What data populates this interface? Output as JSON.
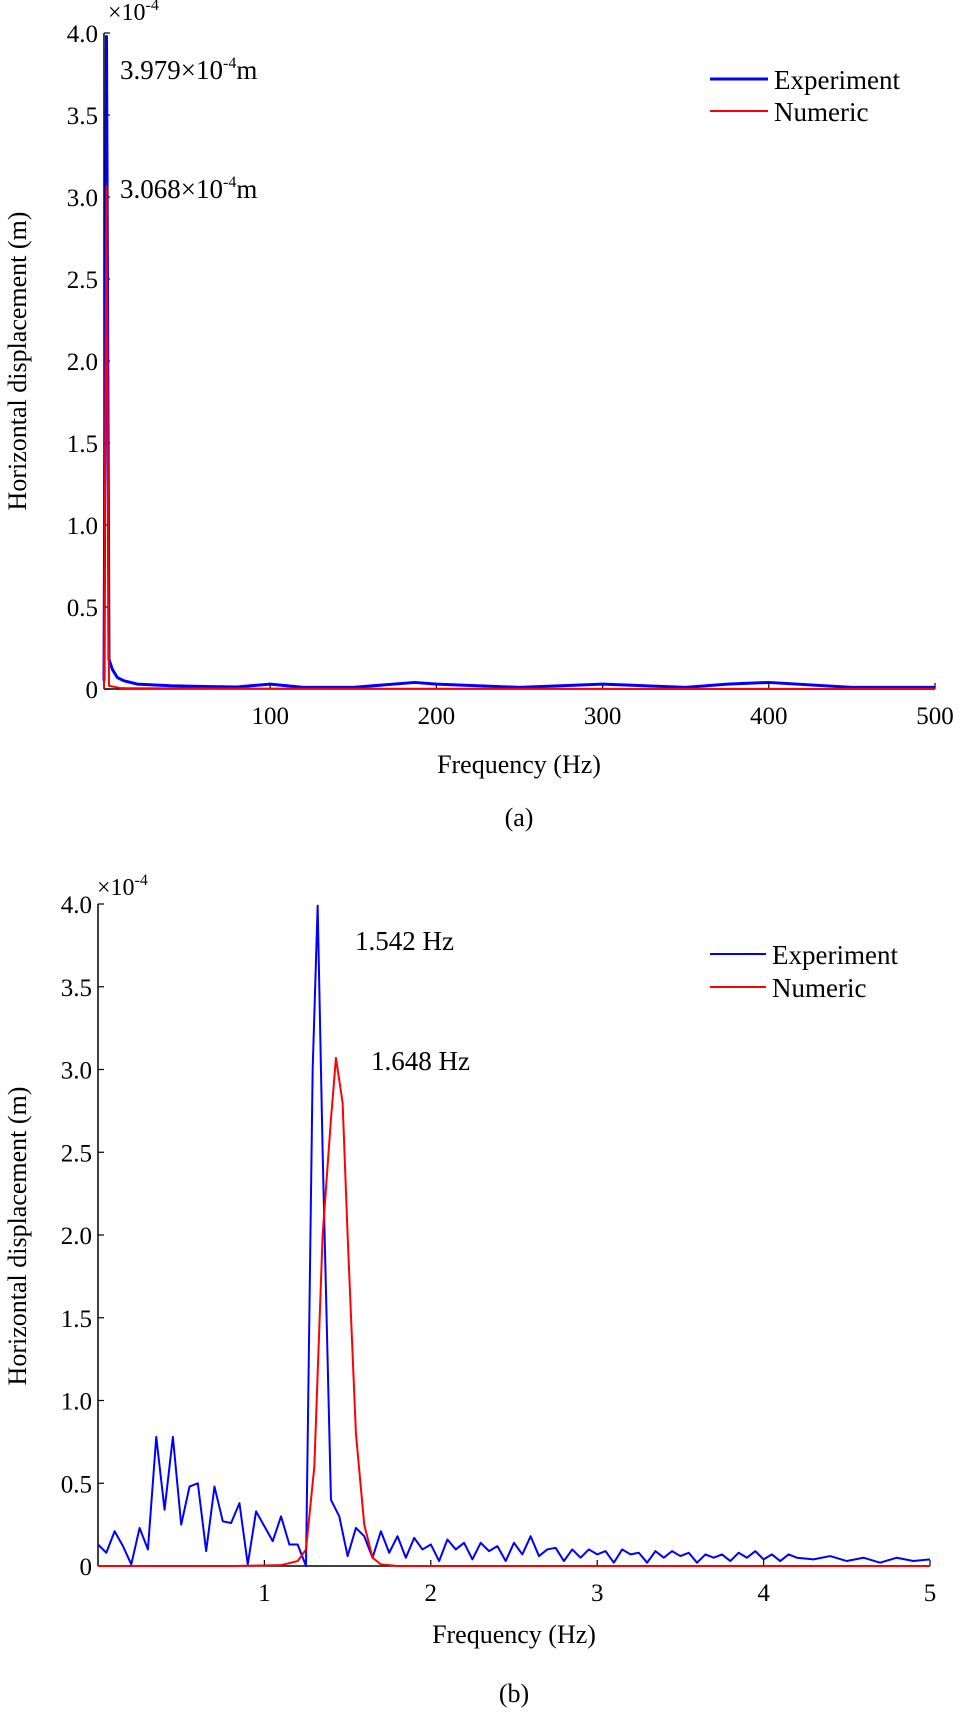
{
  "chart_data": [
    {
      "type": "line",
      "panel_label": "(a)",
      "xlabel": "Frequency (Hz)",
      "ylabel": "Horizontal displacement (m)",
      "y_multiplier": "×10",
      "y_multiplier_exp": "-4",
      "xlim": [
        0,
        500
      ],
      "ylim": [
        0,
        4.0
      ],
      "xticks": [
        100,
        200,
        300,
        400,
        500
      ],
      "xtick_labels": [
        "100",
        "200",
        "300",
        "400",
        "500"
      ],
      "yticks": [
        0,
        0.5,
        1.0,
        1.5,
        2.0,
        2.5,
        3.0,
        3.5,
        4.0
      ],
      "ytick_labels": [
        "0",
        "0.5",
        "1.0",
        "1.5",
        "2.0",
        "2.5",
        "3.0",
        "3.5",
        "4.0"
      ],
      "legend_position": "top-right",
      "series": [
        {
          "name": "Experiment",
          "color": "#0000ff",
          "points": [
            [
              0,
              0.05
            ],
            [
              1.5,
              3.979
            ],
            [
              3,
              0.18
            ],
            [
              5,
              0.12
            ],
            [
              8,
              0.07
            ],
            [
              12,
              0.05
            ],
            [
              20,
              0.03
            ],
            [
              40,
              0.02
            ],
            [
              60,
              0.015
            ],
            [
              80,
              0.012
            ],
            [
              100,
              0.03
            ],
            [
              120,
              0.01
            ],
            [
              150,
              0.01
            ],
            [
              187,
              0.04
            ],
            [
              200,
              0.03
            ],
            [
              250,
              0.01
            ],
            [
              300,
              0.03
            ],
            [
              350,
              0.01
            ],
            [
              375,
              0.03
            ],
            [
              400,
              0.04
            ],
            [
              450,
              0.01
            ],
            [
              500,
              0.01
            ]
          ]
        },
        {
          "name": "Numeric",
          "color": "#ff0000",
          "points": [
            [
              0,
              0.0
            ],
            [
              1.5,
              3.068
            ],
            [
              3,
              0.02
            ],
            [
              10,
              0.005
            ],
            [
              100,
              0.002
            ],
            [
              500,
              0.0
            ]
          ]
        }
      ],
      "annotations": [
        {
          "mantissa": "3.979×10",
          "exp": "-4",
          "unit": "m"
        },
        {
          "mantissa": "3.068×10",
          "exp": "-4",
          "unit": "m"
        }
      ]
    },
    {
      "type": "line",
      "panel_label": "(b)",
      "xlabel": "Frequency (Hz)",
      "ylabel": "Horizontal displacement (m)",
      "y_multiplier": "×10",
      "y_multiplier_exp": "-4",
      "xlim": [
        0,
        5
      ],
      "ylim": [
        0,
        4.0
      ],
      "xticks": [
        1,
        2,
        3,
        4,
        5
      ],
      "xtick_labels": [
        "1",
        "2",
        "3",
        "4",
        "5"
      ],
      "yticks": [
        0,
        0.5,
        1.0,
        1.5,
        2.0,
        2.5,
        3.0,
        3.5,
        4.0
      ],
      "ytick_labels": [
        "0",
        "0.5",
        "1.0",
        "1.5",
        "2.0",
        "2.5",
        "3.0",
        "3.5",
        "4.0"
      ],
      "legend_position": "top-right",
      "series": [
        {
          "name": "Experiment",
          "color": "#0000ff",
          "points": [
            [
              0,
              0.13
            ],
            [
              0.05,
              0.08
            ],
            [
              0.1,
              0.21
            ],
            [
              0.15,
              0.12
            ],
            [
              0.2,
              0.01
            ],
            [
              0.25,
              0.23
            ],
            [
              0.3,
              0.1
            ],
            [
              0.35,
              0.78
            ],
            [
              0.4,
              0.34
            ],
            [
              0.45,
              0.78
            ],
            [
              0.5,
              0.25
            ],
            [
              0.55,
              0.48
            ],
            [
              0.6,
              0.5
            ],
            [
              0.65,
              0.09
            ],
            [
              0.7,
              0.48
            ],
            [
              0.75,
              0.27
            ],
            [
              0.8,
              0.26
            ],
            [
              0.85,
              0.38
            ],
            [
              0.9,
              0.01
            ],
            [
              0.95,
              0.33
            ],
            [
              1.0,
              0.24
            ],
            [
              1.05,
              0.15
            ],
            [
              1.1,
              0.3
            ],
            [
              1.15,
              0.13
            ],
            [
              1.2,
              0.13
            ],
            [
              1.25,
              0.0
            ],
            [
              1.29,
              3.0
            ],
            [
              1.32,
              3.99
            ],
            [
              1.35,
              2.5
            ],
            [
              1.4,
              0.4
            ],
            [
              1.45,
              0.3
            ],
            [
              1.5,
              0.06
            ],
            [
              1.55,
              0.23
            ],
            [
              1.6,
              0.18
            ],
            [
              1.65,
              0.05
            ],
            [
              1.7,
              0.21
            ],
            [
              1.75,
              0.08
            ],
            [
              1.8,
              0.18
            ],
            [
              1.85,
              0.05
            ],
            [
              1.9,
              0.17
            ],
            [
              1.95,
              0.1
            ],
            [
              2.0,
              0.13
            ],
            [
              2.05,
              0.03
            ],
            [
              2.1,
              0.16
            ],
            [
              2.15,
              0.1
            ],
            [
              2.2,
              0.14
            ],
            [
              2.25,
              0.04
            ],
            [
              2.3,
              0.14
            ],
            [
              2.35,
              0.09
            ],
            [
              2.4,
              0.12
            ],
            [
              2.45,
              0.03
            ],
            [
              2.5,
              0.14
            ],
            [
              2.55,
              0.07
            ],
            [
              2.6,
              0.18
            ],
            [
              2.65,
              0.06
            ],
            [
              2.7,
              0.1
            ],
            [
              2.75,
              0.11
            ],
            [
              2.8,
              0.03
            ],
            [
              2.85,
              0.1
            ],
            [
              2.9,
              0.05
            ],
            [
              2.95,
              0.1
            ],
            [
              3.0,
              0.07
            ],
            [
              3.05,
              0.09
            ],
            [
              3.1,
              0.02
            ],
            [
              3.15,
              0.1
            ],
            [
              3.2,
              0.07
            ],
            [
              3.25,
              0.08
            ],
            [
              3.3,
              0.02
            ],
            [
              3.35,
              0.09
            ],
            [
              3.4,
              0.05
            ],
            [
              3.45,
              0.09
            ],
            [
              3.5,
              0.06
            ],
            [
              3.55,
              0.08
            ],
            [
              3.6,
              0.02
            ],
            [
              3.65,
              0.07
            ],
            [
              3.7,
              0.05
            ],
            [
              3.75,
              0.07
            ],
            [
              3.8,
              0.03
            ],
            [
              3.85,
              0.08
            ],
            [
              3.9,
              0.05
            ],
            [
              3.95,
              0.09
            ],
            [
              4.0,
              0.04
            ],
            [
              4.05,
              0.07
            ],
            [
              4.1,
              0.03
            ],
            [
              4.15,
              0.07
            ],
            [
              4.2,
              0.05
            ],
            [
              4.3,
              0.04
            ],
            [
              4.4,
              0.06
            ],
            [
              4.5,
              0.03
            ],
            [
              4.6,
              0.05
            ],
            [
              4.7,
              0.02
            ],
            [
              4.8,
              0.05
            ],
            [
              4.9,
              0.03
            ],
            [
              5.0,
              0.04
            ]
          ]
        },
        {
          "name": "Numeric",
          "color": "#ff0000",
          "points": [
            [
              0,
              0.0
            ],
            [
              0.8,
              0.0
            ],
            [
              1.1,
              0.005
            ],
            [
              1.2,
              0.03
            ],
            [
              1.25,
              0.1
            ],
            [
              1.3,
              0.6
            ],
            [
              1.35,
              2.0
            ],
            [
              1.4,
              2.7
            ],
            [
              1.43,
              3.07
            ],
            [
              1.47,
              2.8
            ],
            [
              1.5,
              2.0
            ],
            [
              1.55,
              0.8
            ],
            [
              1.6,
              0.25
            ],
            [
              1.65,
              0.05
            ],
            [
              1.7,
              0.01
            ],
            [
              1.8,
              0.0
            ],
            [
              5.0,
              0.0
            ]
          ]
        }
      ],
      "annotations": [
        {
          "text": "1.542 Hz"
        },
        {
          "text": "1.648 Hz"
        }
      ]
    }
  ]
}
